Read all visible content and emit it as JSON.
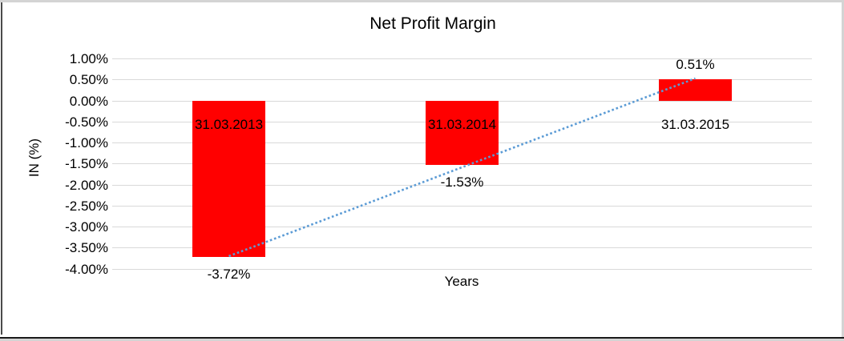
{
  "window": {
    "background": "#ffffff",
    "border_gray": "#d4d4d4",
    "border_dark": "#4a4a4a",
    "border_black": "#1a1a1a"
  },
  "chart_data": {
    "type": "bar",
    "title": "Net Profit Margin",
    "categories": [
      "31.03.2013",
      "31.03.2014",
      "31.03.2015"
    ],
    "values": [
      -3.72,
      -1.53,
      0.51
    ],
    "data_labels": [
      "-3.72%",
      "-1.53%",
      "0.51%"
    ],
    "xlabel": "Years",
    "ylabel": "IN (%)",
    "ylim": [
      -4.0,
      1.0
    ],
    "ytick_step": 0.5,
    "yticks": [
      "1.00%",
      "0.50%",
      "0.00%",
      "-0.50%",
      "-1.00%",
      "-1.50%",
      "-2.00%",
      "-2.50%",
      "-3.00%",
      "-3.50%",
      "-4.00%"
    ],
    "bar_color": "#ff0000",
    "gridline_color": "#d9d9d9",
    "text_color": "#000000",
    "grid": true,
    "legend": "none",
    "trendline": {
      "type": "linear",
      "style": "dotted",
      "color": "#5b9bd5"
    }
  }
}
